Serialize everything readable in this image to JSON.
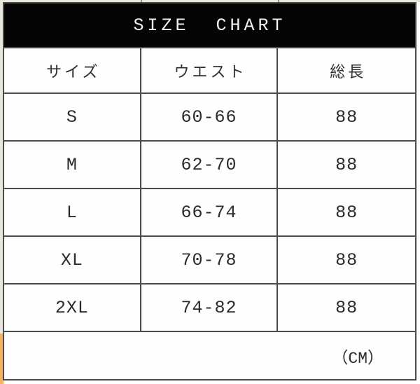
{
  "chart_data": {
    "type": "table",
    "title": "SIZE CHART",
    "columns": [
      "サイズ",
      "ウエスト",
      "総長"
    ],
    "rows": [
      [
        "S",
        "60-66",
        "88"
      ],
      [
        "M",
        "62-70",
        "88"
      ],
      [
        "L",
        "66-74",
        "88"
      ],
      [
        "XL",
        "70-78",
        "88"
      ],
      [
        "2XL",
        "74-82",
        "88"
      ]
    ],
    "unit_note": "（CM）"
  },
  "colors": {
    "title_bar_bg": "#050505",
    "title_text": "#f2f2f2",
    "grid_line": "#4b4b4b",
    "cell_bg": "#fefefe",
    "body_text": "#2b2b2b",
    "page_margin": "#e9e6dc",
    "accent_strip": "#f4b266"
  }
}
